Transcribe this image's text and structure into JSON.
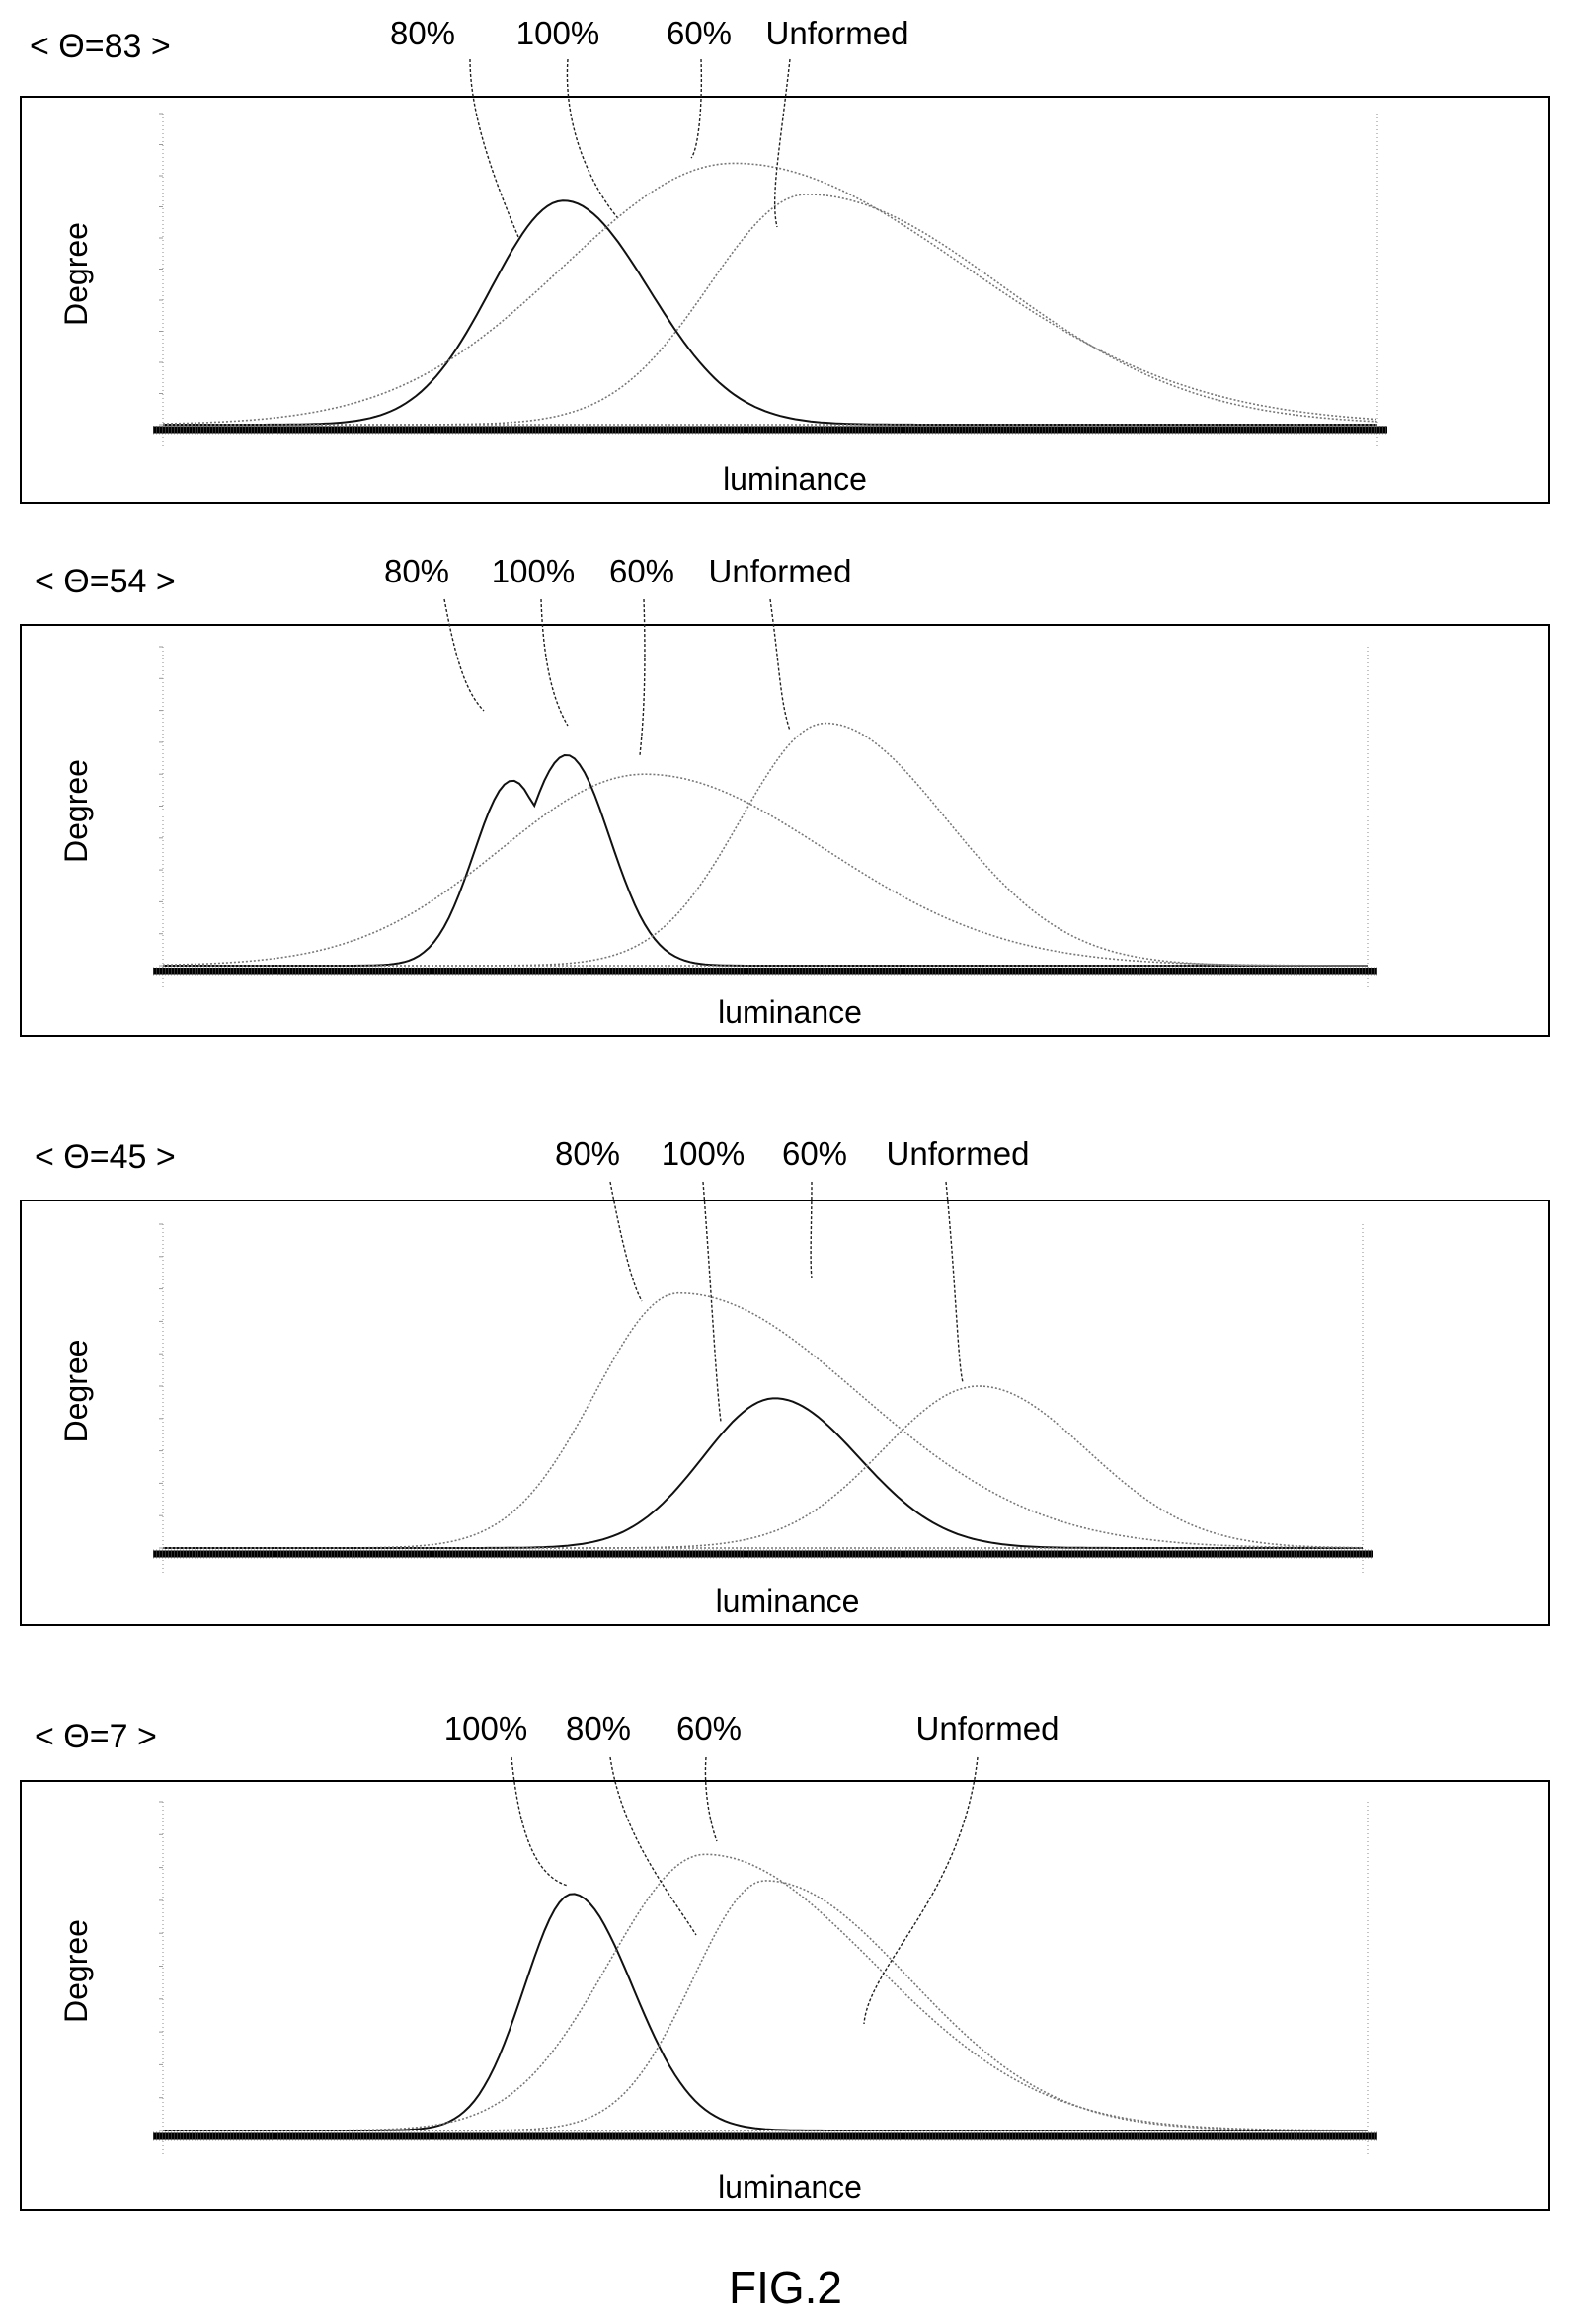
{
  "figure": {
    "caption": "FIG.2"
  },
  "chart_data": [
    {
      "type": "line",
      "title": "< Θ=83 >",
      "xlabel": "luminance",
      "ylabel": "Degree",
      "xlim": [
        0,
        100
      ],
      "ylim": [
        0,
        5000
      ],
      "grid": false,
      "series": [
        {
          "name": "80%",
          "kind": "gaussian",
          "peak_x": 33,
          "peak_y": 3600,
          "sigma_left": 6,
          "sigma_right": 7,
          "style": "solid"
        },
        {
          "name": "100%",
          "kind": "gaussian",
          "peak_x": 47,
          "peak_y": 4200,
          "sigma_left": 14,
          "sigma_right": 19,
          "style": "dotted"
        },
        {
          "name": "60%",
          "kind": "gaussian",
          "peak_x": 53,
          "peak_y": 3700,
          "sigma_left": 8,
          "sigma_right": 16,
          "style": "dotted"
        },
        {
          "name": "Unformed",
          "kind": "flat",
          "peak_x": 0,
          "peak_y": 0,
          "style": "dotted"
        }
      ],
      "annotations": [
        {
          "text": "80%"
        },
        {
          "text": "100%"
        },
        {
          "text": "60%"
        },
        {
          "text": "Unformed"
        }
      ]
    },
    {
      "type": "line",
      "title": "< Θ=54 >",
      "xlabel": "luminance",
      "ylabel": "Degree",
      "xlim": [
        0,
        100
      ],
      "ylim": [
        0,
        5000
      ],
      "grid": false,
      "series": [
        {
          "name": "80%",
          "kind": "bimodal",
          "peaks": [
            [
              29,
              2900,
              3.2
            ],
            [
              33.5,
              3300,
              3.6
            ]
          ],
          "style": "solid"
        },
        {
          "name": "100%",
          "kind": "gaussian",
          "peak_x": 40,
          "peak_y": 3000,
          "sigma_left": 12,
          "sigma_right": 15,
          "style": "dotted"
        },
        {
          "name": "60%",
          "kind": "gaussian",
          "peak_x": 55,
          "peak_y": 3800,
          "sigma_left": 7,
          "sigma_right": 10,
          "style": "dotted"
        },
        {
          "name": "Unformed",
          "kind": "flat",
          "peak_x": 0,
          "peak_y": 0,
          "style": "dotted"
        }
      ],
      "annotations": [
        {
          "text": "80%"
        },
        {
          "text": "100%"
        },
        {
          "text": "60%"
        },
        {
          "text": "Unformed"
        }
      ]
    },
    {
      "type": "line",
      "title": "< Θ=45 >",
      "xlabel": "luminance",
      "ylabel": "Degree",
      "xlim": [
        0,
        100
      ],
      "ylim": [
        0,
        8000
      ],
      "grid": false,
      "series": [
        {
          "name": "80%",
          "kind": "gaussian",
          "peak_x": 43,
          "peak_y": 6300,
          "sigma_left": 7,
          "sigma_right": 15,
          "style": "dotted"
        },
        {
          "name": "100%",
          "kind": "gaussian",
          "peak_x": 51,
          "peak_y": 3700,
          "sigma_left": 6,
          "sigma_right": 7,
          "style": "solid"
        },
        {
          "name": "60%",
          "kind": "gaussian",
          "peak_x": 68,
          "peak_y": 4000,
          "sigma_left": 8,
          "sigma_right": 9,
          "style": "dotted"
        },
        {
          "name": "Unformed",
          "kind": "flat",
          "peak_x": 0,
          "peak_y": 0,
          "style": "dotted"
        }
      ],
      "annotations": [
        {
          "text": "80%"
        },
        {
          "text": "100%"
        },
        {
          "text": "60%"
        },
        {
          "text": "Unformed"
        }
      ]
    },
    {
      "type": "line",
      "title": "< Θ=7 >",
      "xlabel": "luminance",
      "ylabel": "Degree",
      "xlim": [
        0,
        100
      ],
      "ylim": [
        0,
        5000
      ],
      "grid": false,
      "series": [
        {
          "name": "100%",
          "kind": "gaussian",
          "peak_x": 34,
          "peak_y": 3600,
          "sigma_left": 4,
          "sigma_right": 5,
          "style": "solid"
        },
        {
          "name": "80%",
          "kind": "gaussian",
          "peak_x": 45,
          "peak_y": 4200,
          "sigma_left": 8,
          "sigma_right": 14,
          "style": "dotted"
        },
        {
          "name": "60%",
          "kind": "gaussian",
          "peak_x": 50,
          "peak_y": 3800,
          "sigma_left": 6,
          "sigma_right": 12,
          "style": "dotted"
        },
        {
          "name": "Unformed",
          "kind": "flat",
          "peak_x": 0,
          "peak_y": 0,
          "style": "dotted"
        }
      ],
      "annotations": [
        {
          "text": "100%"
        },
        {
          "text": "80%"
        },
        {
          "text": "60%"
        },
        {
          "text": "Unformed"
        }
      ]
    }
  ]
}
